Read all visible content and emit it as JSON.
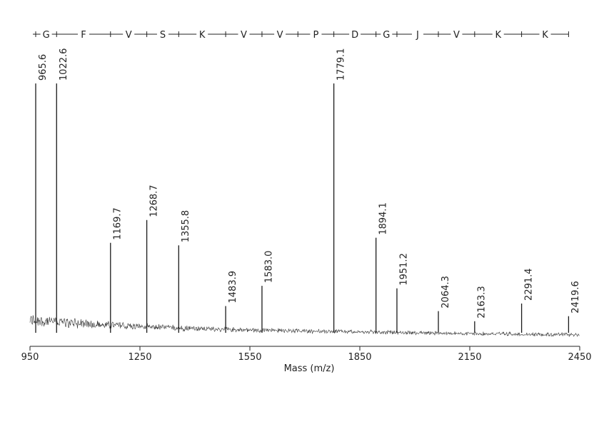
{
  "chart_data": {
    "type": "stem",
    "x_label": "Mass (m/z)",
    "xlim": [
      950,
      2450
    ],
    "xticks": [
      950,
      1250,
      1550,
      1850,
      2150,
      2450
    ],
    "ylim": [
      0,
      100
    ],
    "color": "#1a1a1a",
    "peaks": {
      "x": [
        965.6,
        1022.6,
        1169.7,
        1268.7,
        1355.8,
        1483.9,
        1583.0,
        1779.1,
        1894.1,
        1951.2,
        2064.3,
        2163.3,
        2291.4,
        2419.6
      ],
      "x_labels": [
        "965.6",
        "1022.6",
        "1169.7",
        "1268.7",
        "1355.8",
        "1483.9",
        "1583.0",
        "1779.1",
        "1894.1",
        "1951.2",
        "2064.3",
        "2163.3",
        "2291.4",
        "2419.6"
      ],
      "values": [
        98,
        98,
        35,
        44,
        34,
        10,
        18,
        98,
        37,
        17,
        8,
        4,
        11,
        6
      ]
    },
    "sequence": {
      "residues": [
        "G",
        "F",
        "V",
        "S",
        "K",
        "V",
        "V",
        "P",
        "D",
        "G",
        "J",
        "V",
        "K",
        "K"
      ],
      "boundaries": [
        965.6,
        1022.6,
        1169.7,
        1268.7,
        1355.8,
        1483.9,
        1583.0,
        1681,
        1779.1,
        1894.1,
        1951.2,
        2064.3,
        2163.3,
        2291.4,
        2419.6
      ]
    }
  }
}
